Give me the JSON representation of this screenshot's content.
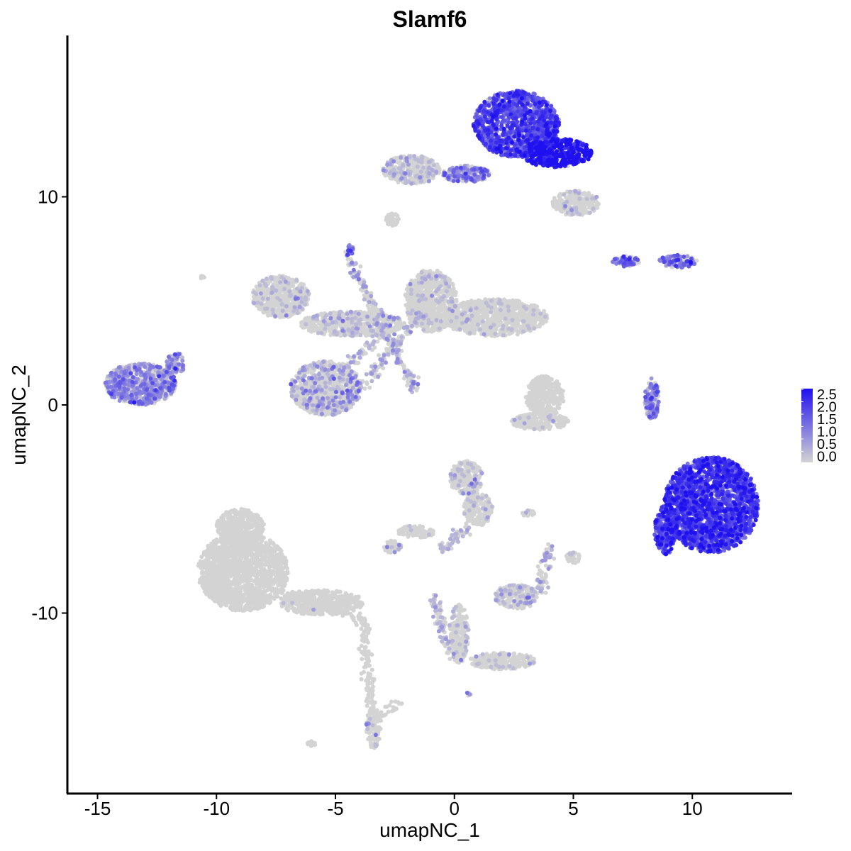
{
  "chart_data": {
    "type": "scatter",
    "title": "Slamf6",
    "xlabel": "umapNC_1",
    "ylabel": "umapNC_2",
    "xlim": [
      -16.5,
      14.5
    ],
    "ylim": [
      -18.5,
      17.5
    ],
    "x_ticks": [
      -15,
      -10,
      -5,
      0,
      5,
      10
    ],
    "x_tick_labels": [
      "-15",
      "-10",
      "-5",
      "0",
      "5",
      "10"
    ],
    "y_ticks": [
      -10,
      0,
      10
    ],
    "y_tick_labels": [
      "-10",
      "0",
      "10"
    ],
    "grid": false,
    "legend": {
      "placement": "right",
      "type": "colorbar",
      "range": [
        0,
        2.5
      ],
      "labels": [
        "2.5",
        "2.0",
        "1.5",
        "1.0",
        "0.5",
        "0.0"
      ],
      "low_color": "#d3d3d3",
      "high_color": "#1f10f0"
    },
    "clusters": [
      {
        "center": [
          2.6,
          13.5
        ],
        "radius": [
          1.8,
          1.6
        ],
        "expression": 1.6,
        "mixed_fraction": 0.9,
        "description": "upper-right expressing"
      },
      {
        "center": [
          4.3,
          12.1
        ],
        "radius": [
          1.5,
          0.7
        ],
        "expression": 2.3,
        "mixed_fraction": 0.9
      },
      {
        "center": [
          -1.8,
          11.3
        ],
        "radius": [
          1.2,
          0.7
        ],
        "expression": 0.2,
        "mixed_fraction": 0.25
      },
      {
        "center": [
          0.5,
          11.1
        ],
        "radius": [
          1.0,
          0.4
        ],
        "expression": 1.0,
        "mixed_fraction": 0.6
      },
      {
        "center": [
          5.1,
          9.7
        ],
        "radius": [
          1.0,
          0.6
        ],
        "expression": 0.2,
        "mixed_fraction": 0.1
      },
      {
        "center": [
          -2.6,
          8.9
        ],
        "radius": [
          0.3,
          0.3
        ],
        "expression": 0.0,
        "mixed_fraction": 0.0
      },
      {
        "center": [
          -4.4,
          7.4
        ],
        "radius": [
          0.2,
          0.3
        ],
        "expression": 1.0,
        "mixed_fraction": 0.8
      },
      {
        "center": [
          7.2,
          6.9
        ],
        "radius": [
          0.6,
          0.25
        ],
        "expression": 1.2,
        "mixed_fraction": 0.7
      },
      {
        "center": [
          9.4,
          6.9
        ],
        "radius": [
          0.8,
          0.3
        ],
        "expression": 1.2,
        "mixed_fraction": 0.7
      },
      {
        "center": [
          -7.3,
          5.2
        ],
        "radius": [
          1.2,
          1.0
        ],
        "expression": 0.1,
        "mixed_fraction": 0.1
      },
      {
        "center": [
          -1.0,
          5.0
        ],
        "radius": [
          1.1,
          1.5
        ],
        "expression": 0.1,
        "mixed_fraction": 0.08
      },
      {
        "center": [
          1.7,
          4.2
        ],
        "radius": [
          2.2,
          0.9
        ],
        "expression": 0.05,
        "mixed_fraction": 0.05
      },
      {
        "center": [
          -4.3,
          3.9
        ],
        "radius": [
          2.2,
          0.6
        ],
        "expression": 0.3,
        "mixed_fraction": 0.15
      },
      {
        "center": [
          -5.4,
          0.8
        ],
        "radius": [
          1.5,
          1.3
        ],
        "expression": 0.6,
        "mixed_fraction": 0.25
      },
      {
        "center": [
          -13.2,
          1.0
        ],
        "radius": [
          1.5,
          1.0
        ],
        "expression": 0.8,
        "mixed_fraction": 0.7
      },
      {
        "center": [
          -11.7,
          2.0
        ],
        "radius": [
          0.4,
          0.5
        ],
        "expression": 0.8,
        "mixed_fraction": 0.6
      },
      {
        "center": [
          3.8,
          0.4
        ],
        "radius": [
          0.8,
          1.0
        ],
        "expression": 0.0,
        "mixed_fraction": 0.0
      },
      {
        "center": [
          3.6,
          -0.8
        ],
        "radius": [
          1.2,
          0.4
        ],
        "expression": 0.0,
        "mixed_fraction": 0.03
      },
      {
        "center": [
          8.3,
          0.3
        ],
        "radius": [
          0.3,
          1.0
        ],
        "expression": 1.0,
        "mixed_fraction": 0.6
      },
      {
        "center": [
          10.8,
          -4.8
        ],
        "radius": [
          2.0,
          2.3
        ],
        "expression": 1.8,
        "mixed_fraction": 0.92
      },
      {
        "center": [
          8.9,
          -6.0
        ],
        "radius": [
          0.5,
          1.2
        ],
        "expression": 1.7,
        "mixed_fraction": 0.9
      },
      {
        "center": [
          0.5,
          -3.5
        ],
        "radius": [
          0.7,
          0.8
        ],
        "expression": 0.2,
        "mixed_fraction": 0.12
      },
      {
        "center": [
          1.0,
          -5.0
        ],
        "radius": [
          0.6,
          0.8
        ],
        "expression": 0.1,
        "mixed_fraction": 0.05
      },
      {
        "center": [
          -2.6,
          -6.8
        ],
        "radius": [
          0.4,
          0.3
        ],
        "expression": 0.3,
        "mixed_fraction": 0.2
      },
      {
        "center": [
          -1.6,
          -6.1
        ],
        "radius": [
          0.8,
          0.3
        ],
        "expression": 0.1,
        "mixed_fraction": 0.05
      },
      {
        "center": [
          -8.9,
          -8.0
        ],
        "radius": [
          1.9,
          1.9
        ],
        "expression": 0.0,
        "mixed_fraction": 0.0
      },
      {
        "center": [
          -9.0,
          -5.8
        ],
        "radius": [
          1.0,
          0.8
        ],
        "expression": 0.0,
        "mixed_fraction": 0.0
      },
      {
        "center": [
          -5.6,
          -9.5
        ],
        "radius": [
          1.8,
          0.6
        ],
        "expression": 0.0,
        "mixed_fraction": 0.01
      },
      {
        "center": [
          -3.4,
          -15.5
        ],
        "radius": [
          0.3,
          1.0
        ],
        "expression": 0.1,
        "mixed_fraction": 0.03
      },
      {
        "center": [
          2.6,
          -9.2
        ],
        "radius": [
          0.9,
          0.6
        ],
        "expression": 0.3,
        "mixed_fraction": 0.15
      },
      {
        "center": [
          5.0,
          -7.3
        ],
        "radius": [
          0.3,
          0.3
        ],
        "expression": 0.0,
        "mixed_fraction": 0.05
      },
      {
        "center": [
          0.2,
          -11.0
        ],
        "radius": [
          0.4,
          1.4
        ],
        "expression": 0.2,
        "mixed_fraction": 0.1
      },
      {
        "center": [
          2.0,
          -12.3
        ],
        "radius": [
          1.4,
          0.4
        ],
        "expression": 0.0,
        "mixed_fraction": 0.05
      },
      {
        "center": [
          3.1,
          -5.2
        ],
        "radius": [
          0.3,
          0.15
        ],
        "expression": 0.2,
        "mixed_fraction": 0.1
      },
      {
        "center": [
          -6.0,
          -16.3
        ],
        "radius": [
          0.2,
          0.15
        ],
        "expression": 0.0,
        "mixed_fraction": 0.0
      },
      {
        "center": [
          -10.6,
          6.1
        ],
        "radius": [
          0.1,
          0.1
        ],
        "expression": 0.0,
        "mixed_fraction": 0.0
      },
      {
        "center": [
          0.6,
          -13.9
        ],
        "radius": [
          0.1,
          0.1
        ],
        "expression": 0.5,
        "mixed_fraction": 0.5
      }
    ],
    "streaks": [
      {
        "from": [
          -4.4,
          7.0
        ],
        "to": [
          -1.6,
          0.6
        ],
        "expression": 0.6
      },
      {
        "from": [
          -4.0,
          0.8
        ],
        "to": [
          -1.4,
          4.4
        ],
        "expression": 0.6
      },
      {
        "from": [
          -4.6,
          1.8
        ],
        "to": [
          -3.0,
          3.4
        ],
        "expression": 0.3
      },
      {
        "from": [
          -7.2,
          -9.0
        ],
        "to": [
          -3.8,
          -10.4
        ],
        "expression": 0.0
      },
      {
        "from": [
          -3.8,
          -10.4
        ],
        "to": [
          -3.5,
          -14.6
        ],
        "expression": 0.0
      },
      {
        "from": [
          0.6,
          -5.8
        ],
        "to": [
          -0.6,
          -7.0
        ],
        "expression": 0.1
      },
      {
        "from": [
          -0.9,
          -9.2
        ],
        "to": [
          -0.1,
          -12.2
        ],
        "expression": 0.3
      },
      {
        "from": [
          4.0,
          -6.8
        ],
        "to": [
          3.6,
          -9.0
        ],
        "expression": 0.3
      },
      {
        "from": [
          -2.4,
          -14.3
        ],
        "to": [
          -3.1,
          -15.0
        ],
        "expression": 0.0
      }
    ]
  }
}
